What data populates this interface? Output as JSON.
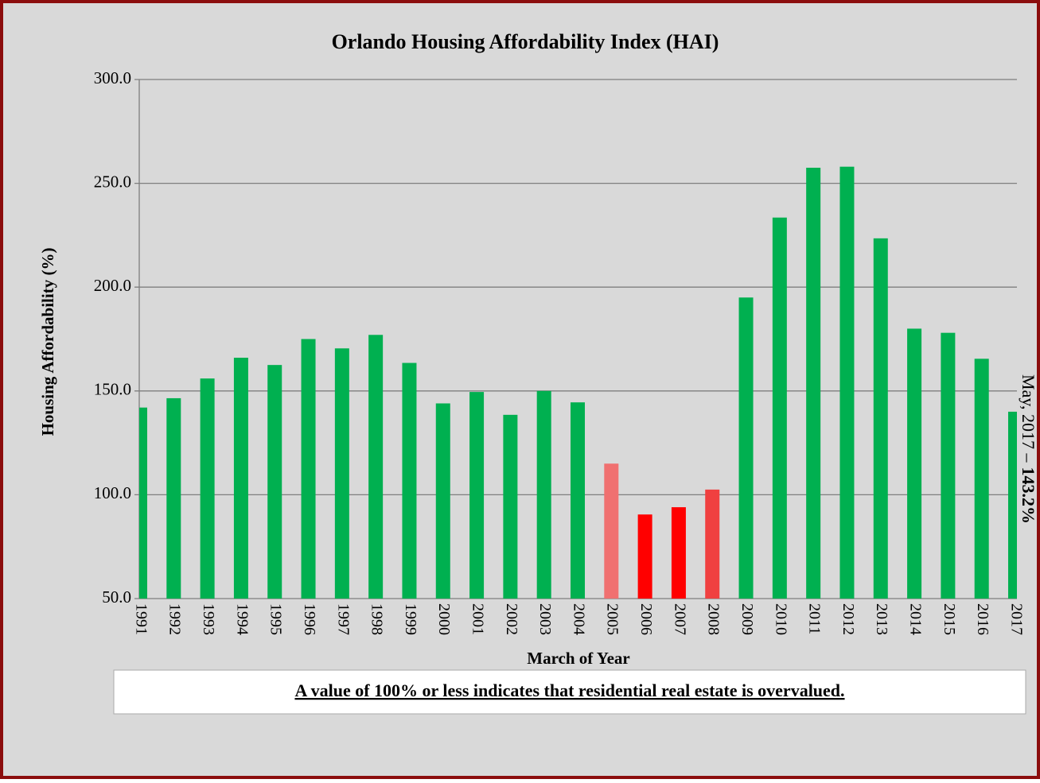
{
  "chart_data": {
    "type": "bar",
    "title": "Orlando Housing Affordability Index (HAI)",
    "y_label": "Housing Affordability (%)",
    "x_label": "March of Year",
    "categories": [
      "1991",
      "1992",
      "1993",
      "1994",
      "1995",
      "1996",
      "1997",
      "1998",
      "1999",
      "2000",
      "2001",
      "2002",
      "2003",
      "2004",
      "2005",
      "2006",
      "2007",
      "2008",
      "2009",
      "2010",
      "2011",
      "2012",
      "2013",
      "2014",
      "2015",
      "2016",
      "2017"
    ],
    "values": [
      142,
      146.5,
      156,
      166,
      162.5,
      175,
      170.5,
      177,
      163.5,
      144,
      149.5,
      138.5,
      150,
      144.5,
      115,
      90.5,
      94,
      102.5,
      195,
      233.5,
      257.5,
      258,
      223.5,
      180,
      178,
      165.5,
      140
    ],
    "colors": [
      "#00b050",
      "#00b050",
      "#00b050",
      "#00b050",
      "#00b050",
      "#00b050",
      "#00b050",
      "#00b050",
      "#00b050",
      "#00b050",
      "#00b050",
      "#00b050",
      "#00b050",
      "#00b050",
      "#f07070",
      "#ff0000",
      "#ff0000",
      "#f04040",
      "#00b050",
      "#00b050",
      "#00b050",
      "#00b050",
      "#00b050",
      "#00b050",
      "#00b050",
      "#00b050",
      "#00b050"
    ],
    "ylim": [
      50,
      300
    ],
    "yticks": [
      {
        "value": 50,
        "label": "50.0"
      },
      {
        "value": 100,
        "label": "100.0"
      },
      {
        "value": 150,
        "label": "150.0"
      },
      {
        "value": 200,
        "label": "200.0"
      },
      {
        "value": 250,
        "label": "250.0"
      },
      {
        "value": 300,
        "label": "300.0"
      }
    ],
    "grid": true,
    "annotation": {
      "text": "May, 2017 –",
      "bold_text": "143.2%"
    },
    "footnote": "A value of 100% or less indicates that residential real estate is overvalued."
  }
}
